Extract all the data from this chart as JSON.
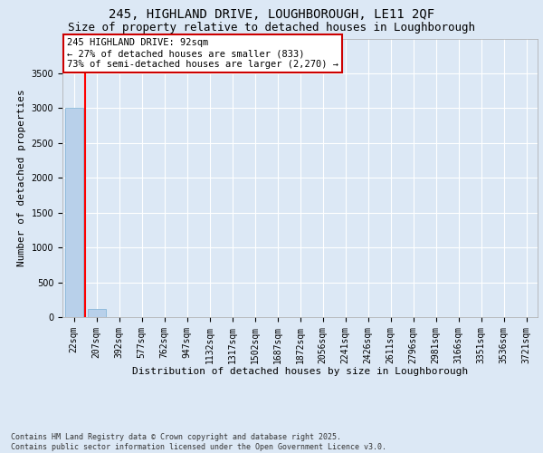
{
  "title1": "245, HIGHLAND DRIVE, LOUGHBOROUGH, LE11 2QF",
  "title2": "Size of property relative to detached houses in Loughborough",
  "xlabel": "Distribution of detached houses by size in Loughborough",
  "ylabel": "Number of detached properties",
  "categories": [
    "22sqm",
    "207sqm",
    "392sqm",
    "577sqm",
    "762sqm",
    "947sqm",
    "1132sqm",
    "1317sqm",
    "1502sqm",
    "1687sqm",
    "1872sqm",
    "2056sqm",
    "2241sqm",
    "2426sqm",
    "2611sqm",
    "2796sqm",
    "2981sqm",
    "3166sqm",
    "3351sqm",
    "3536sqm",
    "3721sqm"
  ],
  "values": [
    3000,
    120,
    0,
    0,
    0,
    0,
    0,
    0,
    0,
    0,
    0,
    0,
    0,
    0,
    0,
    0,
    0,
    0,
    0,
    0,
    0
  ],
  "bar_color": "#b8d0ea",
  "bar_edge_color": "#7aafd4",
  "ylim": [
    0,
    4000
  ],
  "yticks": [
    0,
    500,
    1000,
    1500,
    2000,
    2500,
    3000,
    3500
  ],
  "red_line_x": 0.5,
  "annotation_title": "245 HIGHLAND DRIVE: 92sqm",
  "annotation_line1": "← 27% of detached houses are smaller (833)",
  "annotation_line2": "73% of semi-detached houses are larger (2,270) →",
  "annotation_box_color": "#ffffff",
  "annotation_box_edge": "#cc0000",
  "background_color": "#dce8f5",
  "grid_color": "#ffffff",
  "footer1": "Contains HM Land Registry data © Crown copyright and database right 2025.",
  "footer2": "Contains public sector information licensed under the Open Government Licence v3.0.",
  "title_fontsize": 10,
  "subtitle_fontsize": 9,
  "axis_label_fontsize": 8,
  "tick_fontsize": 7,
  "annotation_fontsize": 7.5,
  "footer_fontsize": 6
}
